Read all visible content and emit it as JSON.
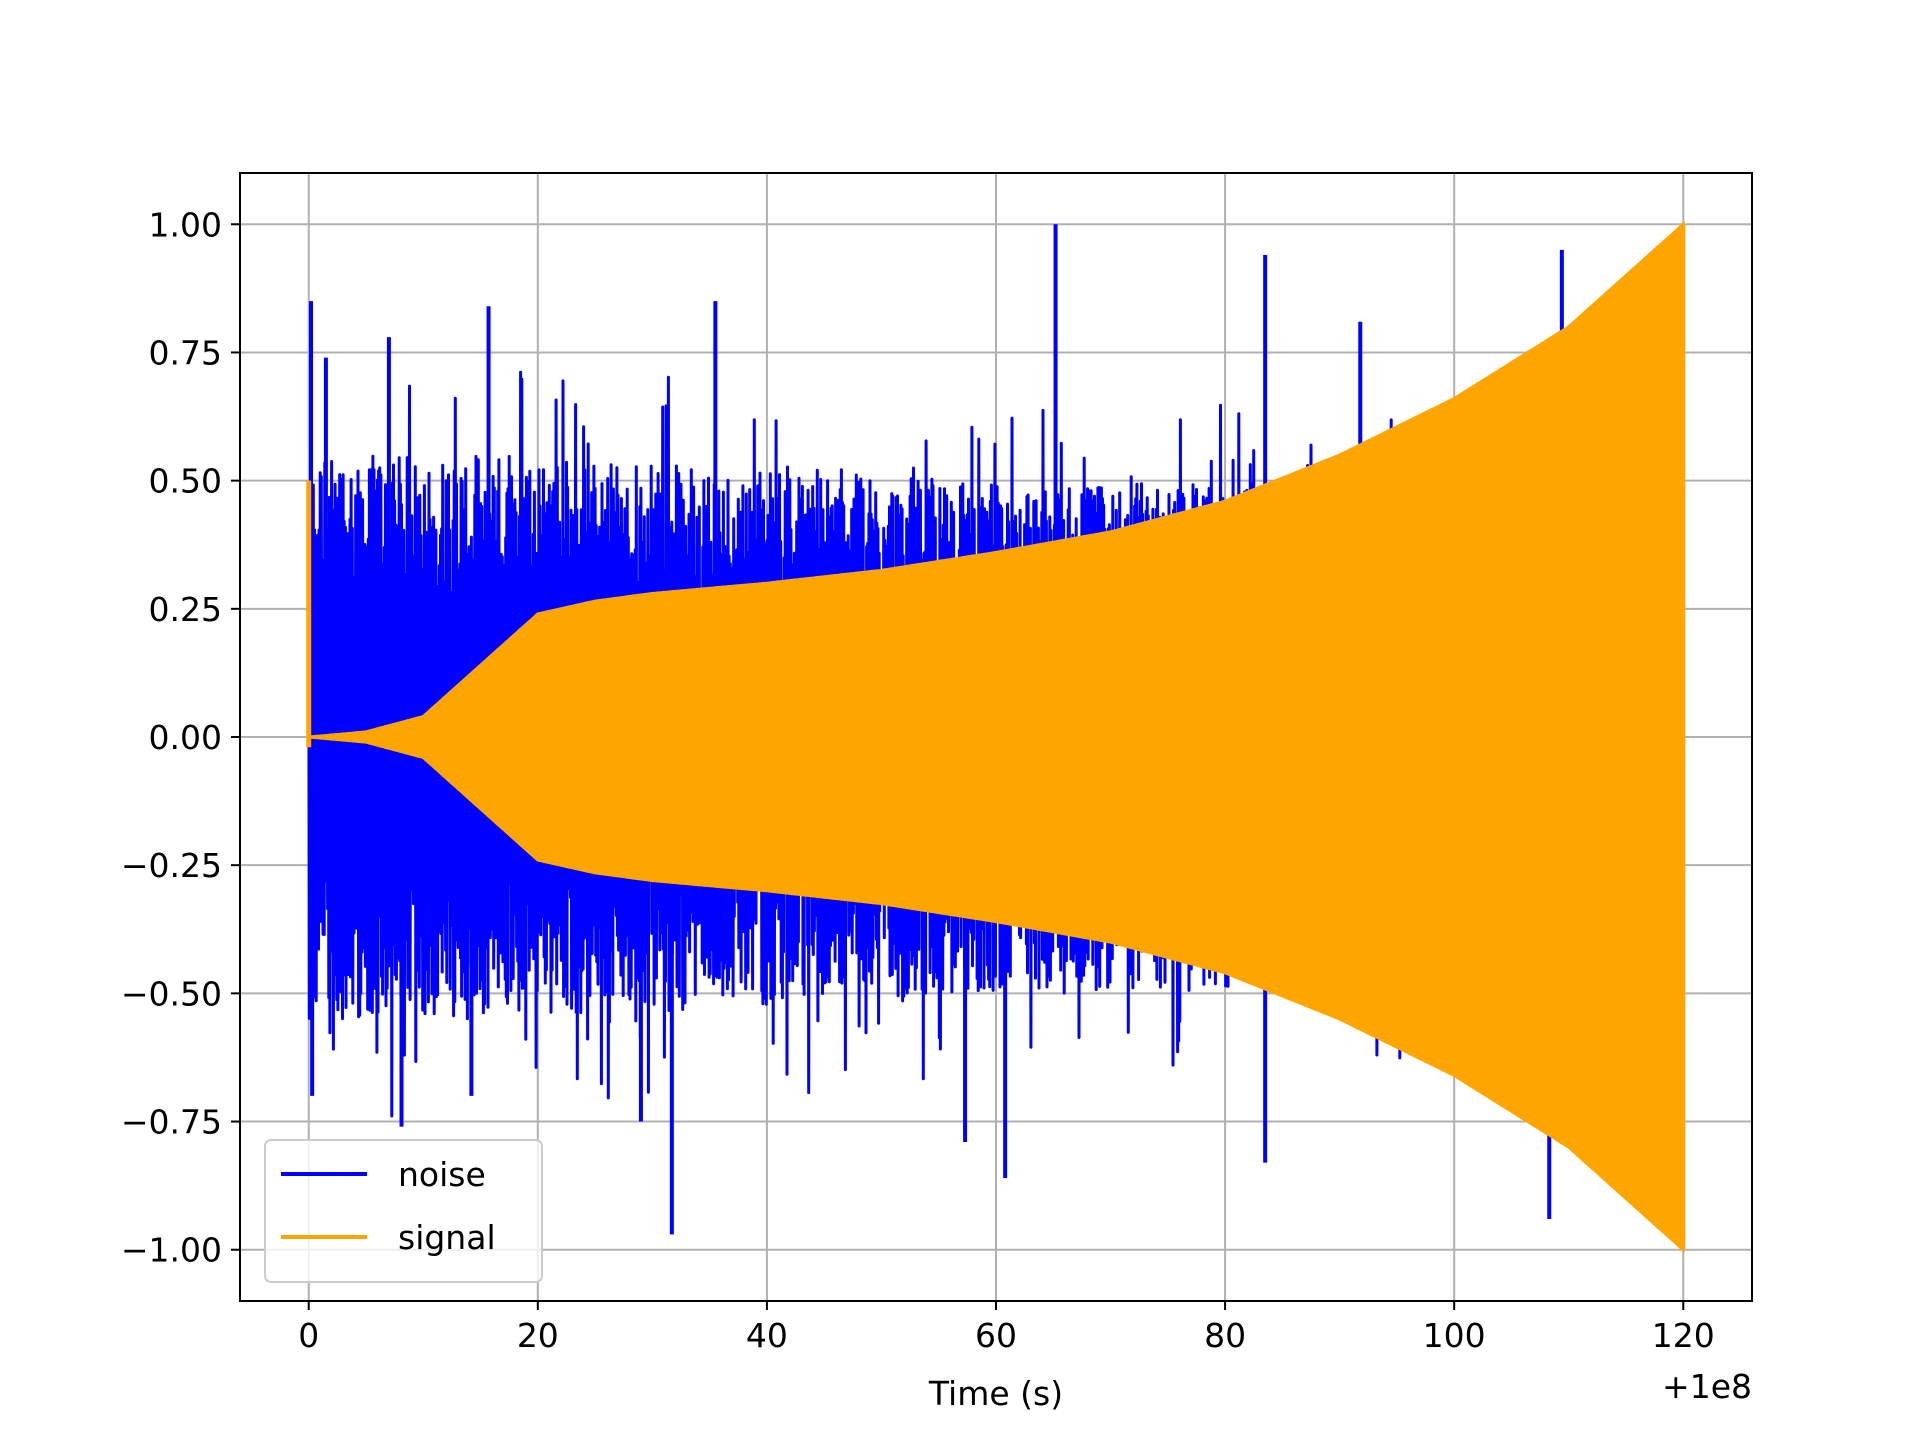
{
  "chart_data": {
    "type": "line",
    "title": "",
    "xlabel": "Time (s)",
    "ylabel": "",
    "x_offset_text": "+1e8",
    "xlim": [
      -6,
      126
    ],
    "ylim": [
      -1.1,
      1.1
    ],
    "xticks": [
      0,
      20,
      40,
      60,
      80,
      100,
      120
    ],
    "xtick_labels": [
      "0",
      "20",
      "40",
      "60",
      "80",
      "100",
      "120"
    ],
    "yticks": [
      1.0,
      0.75,
      0.5,
      0.25,
      0.0,
      -0.25,
      -0.5,
      -0.75,
      -1.0
    ],
    "ytick_labels": [
      "1.00",
      "0.75",
      "0.50",
      "0.25",
      "0.00",
      "−0.25",
      "−0.50",
      "−0.75",
      "−1.00"
    ],
    "grid": true,
    "legend_position": "lower-left",
    "series": [
      {
        "name": "noise",
        "color": "#0000ff",
        "x_range": [
          0,
          120
        ],
        "description_shape": "dense random spikes",
        "typical_amplitude_envelope": [
          [
            0,
            0.5
          ],
          [
            20,
            0.5
          ],
          [
            60,
            0.45
          ],
          [
            120,
            0.45
          ]
        ],
        "peaks": [
          {
            "x": 0.2,
            "y": 0.85
          },
          {
            "x": 1.5,
            "y": 0.74
          },
          {
            "x": 7.0,
            "y": 0.78
          },
          {
            "x": 15.7,
            "y": 0.84
          },
          {
            "x": 35.5,
            "y": 0.85
          },
          {
            "x": 65.2,
            "y": 1.0
          },
          {
            "x": 83.5,
            "y": 0.94
          },
          {
            "x": 91.8,
            "y": 0.81
          },
          {
            "x": 109.4,
            "y": 0.95
          },
          {
            "x": 0.3,
            "y": -0.7
          },
          {
            "x": 8.1,
            "y": -0.76
          },
          {
            "x": 14.2,
            "y": -0.7
          },
          {
            "x": 29.0,
            "y": -0.75
          },
          {
            "x": 31.7,
            "y": -0.97
          },
          {
            "x": 57.3,
            "y": -0.79
          },
          {
            "x": 60.8,
            "y": -0.86
          },
          {
            "x": 83.5,
            "y": -0.83
          },
          {
            "x": 108.3,
            "y": -0.94
          }
        ]
      },
      {
        "name": "signal",
        "color": "#ffa500",
        "x_range": [
          0,
          120
        ],
        "description_shape": "chirp with growing envelope",
        "envelope": [
          [
            0,
            0.0
          ],
          [
            5,
            0.01
          ],
          [
            10,
            0.04
          ],
          [
            15,
            0.14
          ],
          [
            20,
            0.24
          ],
          [
            25,
            0.265
          ],
          [
            30,
            0.28
          ],
          [
            40,
            0.3
          ],
          [
            50,
            0.325
          ],
          [
            60,
            0.36
          ],
          [
            70,
            0.4
          ],
          [
            80,
            0.46
          ],
          [
            90,
            0.55
          ],
          [
            100,
            0.66
          ],
          [
            110,
            0.8
          ],
          [
            120,
            1.0
          ]
        ]
      }
    ]
  }
}
